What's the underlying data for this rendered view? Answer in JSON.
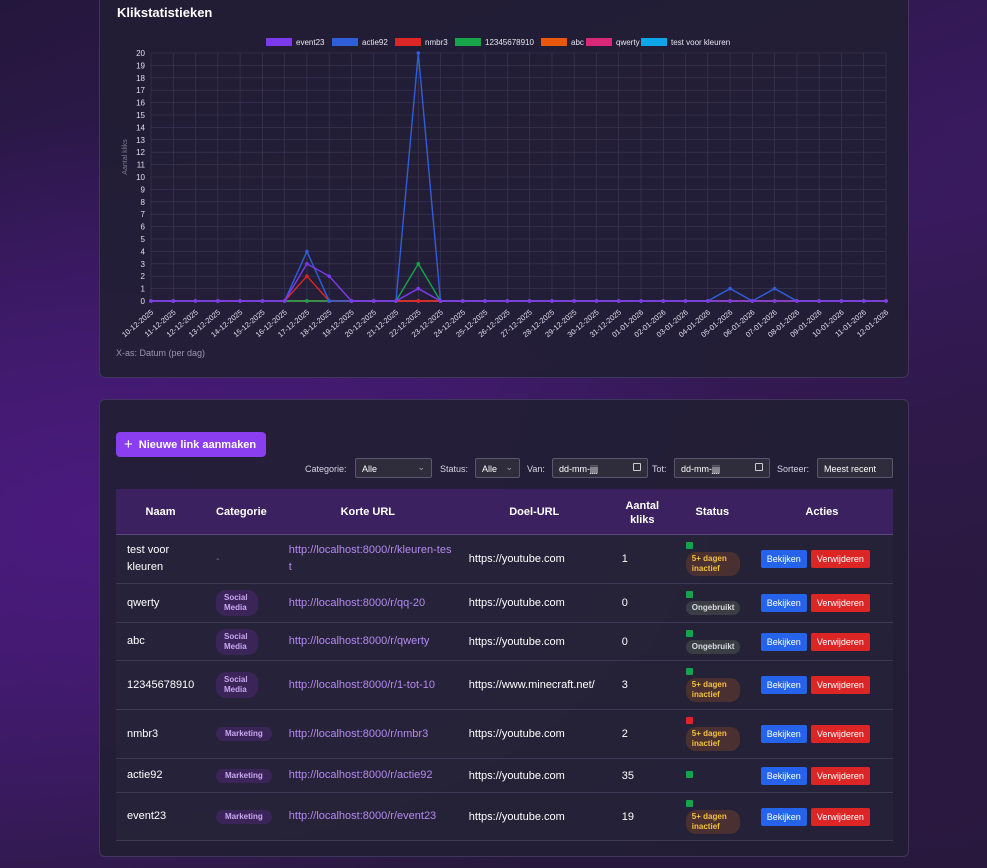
{
  "chart": {
    "title": "Klikstatistieken",
    "x_note": "X-as: Datum (per dag)",
    "ylabel": "Aantal kliks"
  },
  "chart_data": {
    "type": "line",
    "title": "Klikstatistieken",
    "xlabel": "X-as: Datum (per dag)",
    "ylabel": "Aantal kliks",
    "ylim": [
      0,
      20
    ],
    "grid": true,
    "legend": "top",
    "categories": [
      "10-12-2025",
      "11-12-2025",
      "12-12-2025",
      "13-12-2025",
      "14-12-2025",
      "15-12-2025",
      "16-12-2025",
      "17-12-2025",
      "18-12-2025",
      "19-12-2025",
      "20-12-2025",
      "21-12-2025",
      "22-12-2025",
      "23-12-2025",
      "24-12-2025",
      "25-12-2025",
      "26-12-2025",
      "27-12-2025",
      "28-12-2025",
      "29-12-2025",
      "30-12-2025",
      "31-12-2025",
      "01-01-2026",
      "02-01-2026",
      "03-01-2026",
      "04-01-2026",
      "05-01-2026",
      "06-01-2026",
      "07-01-2026",
      "08-01-2026",
      "09-01-2026",
      "10-01-2026",
      "11-01-2026",
      "12-01-2026"
    ],
    "series": [
      {
        "name": "event23",
        "color": "#7c3aed",
        "values": [
          0,
          0,
          0,
          0,
          0,
          0,
          0,
          3,
          2,
          0,
          0,
          0,
          1,
          0,
          0,
          0,
          0,
          0,
          0,
          0,
          0,
          0,
          0,
          0,
          0,
          0,
          0,
          0,
          0,
          0,
          0,
          0,
          0,
          0
        ]
      },
      {
        "name": "actie92",
        "color": "#2f5fd8",
        "values": [
          0,
          0,
          0,
          0,
          0,
          0,
          0,
          4,
          0,
          0,
          0,
          0,
          20,
          0,
          0,
          0,
          0,
          0,
          0,
          0,
          0,
          0,
          0,
          0,
          0,
          0,
          1,
          0,
          1,
          0,
          0,
          0,
          0,
          0
        ]
      },
      {
        "name": "nmbr3",
        "color": "#dc2626",
        "values": [
          0,
          0,
          0,
          0,
          0,
          0,
          0,
          2,
          0,
          0,
          0,
          0,
          0,
          0,
          0,
          0,
          0,
          0,
          0,
          0,
          0,
          0,
          0,
          0,
          0,
          0,
          0,
          0,
          0,
          0,
          0,
          0,
          0,
          0
        ]
      },
      {
        "name": "12345678910",
        "color": "#16a34a",
        "values": [
          0,
          0,
          0,
          0,
          0,
          0,
          0,
          0,
          0,
          0,
          0,
          0,
          3,
          0,
          0,
          0,
          0,
          0,
          0,
          0,
          0,
          0,
          0,
          0,
          0,
          0,
          0,
          0,
          0,
          0,
          0,
          0,
          0,
          0
        ]
      },
      {
        "name": "abc",
        "color": "#ea580c",
        "values": [
          0,
          0,
          0,
          0,
          0,
          0,
          0,
          0,
          0,
          0,
          0,
          0,
          0,
          0,
          0,
          0,
          0,
          0,
          0,
          0,
          0,
          0,
          0,
          0,
          0,
          0,
          0,
          0,
          0,
          0,
          0,
          0,
          0,
          0
        ]
      },
      {
        "name": "qwerty",
        "color": "#db2777",
        "values": [
          0,
          0,
          0,
          0,
          0,
          0,
          0,
          0,
          0,
          0,
          0,
          0,
          0,
          0,
          0,
          0,
          0,
          0,
          0,
          0,
          0,
          0,
          0,
          0,
          0,
          0,
          0,
          0,
          0,
          0,
          0,
          0,
          0,
          0
        ]
      },
      {
        "name": "test voor kleuren",
        "color": "#0ea5e9",
        "values": [
          0,
          0,
          0,
          0,
          0,
          0,
          0,
          0,
          0,
          0,
          0,
          0,
          0,
          0,
          0,
          0,
          0,
          0,
          0,
          0,
          0,
          0,
          0,
          0,
          0,
          0,
          0,
          0,
          0,
          0,
          0,
          0,
          0,
          0
        ]
      }
    ]
  },
  "toolbar": {
    "new_link_label": "Nieuwe link aanmaken"
  },
  "filters": {
    "category_label": "Categorie:",
    "category_value": "Alle",
    "status_label": "Status:",
    "status_value": "Alle",
    "from_label": "Van:",
    "from_placeholder": "dd-mm-jjjj",
    "to_label": "Tot:",
    "to_placeholder": "dd-mm-jjjj",
    "sort_label": "Sorteer:",
    "sort_value": "Meest recent"
  },
  "table": {
    "headers": [
      "Naam",
      "Categorie",
      "Korte URL",
      "Doel-URL",
      "Aantal kliks",
      "Status",
      "Acties"
    ],
    "view_label": "Bekijken",
    "delete_label": "Verwijderen",
    "rows": [
      {
        "name": "test voor kleuren",
        "category": "-",
        "short_url": "http://localhost:8000/r/kleuren-test",
        "target": "https://youtube.com",
        "clicks": "1",
        "status_color": "#16a34a",
        "badge": "5+ dagen inactief",
        "badge_type": "warn"
      },
      {
        "name": "qwerty",
        "category": "Social Media",
        "short_url": "http://localhost:8000/r/qq-20",
        "target": "https://youtube.com",
        "clicks": "0",
        "status_color": "#16a34a",
        "badge": "Ongebruikt",
        "badge_type": "unused"
      },
      {
        "name": "abc",
        "category": "Social Media",
        "short_url": "http://localhost:8000/r/qwerty",
        "target": "https://youtube.com",
        "clicks": "0",
        "status_color": "#16a34a",
        "badge": "Ongebruikt",
        "badge_type": "unused"
      },
      {
        "name": "12345678910",
        "category": "Social Media",
        "short_url": "http://localhost:8000/r/1-tot-10",
        "target": "https://www.minecraft.net/",
        "clicks": "3",
        "status_color": "#16a34a",
        "badge": "5+ dagen inactief",
        "badge_type": "warn"
      },
      {
        "name": "nmbr3",
        "category": "Marketing",
        "short_url": "http://localhost:8000/r/nmbr3",
        "target": "https://youtube.com",
        "clicks": "2",
        "status_color": "#dc2626",
        "badge": "5+ dagen inactief",
        "badge_type": "warn"
      },
      {
        "name": "actie92",
        "category": "Marketing",
        "short_url": "http://localhost:8000/r/actie92",
        "target": "https://youtube.com",
        "clicks": "35",
        "status_color": "#16a34a",
        "badge": "",
        "badge_type": "none"
      },
      {
        "name": "event23",
        "category": "Marketing",
        "short_url": "http://localhost:8000/r/event23",
        "target": "https://youtube.com",
        "clicks": "19",
        "status_color": "#16a34a",
        "badge": "5+ dagen inactief",
        "badge_type": "warn"
      }
    ]
  }
}
